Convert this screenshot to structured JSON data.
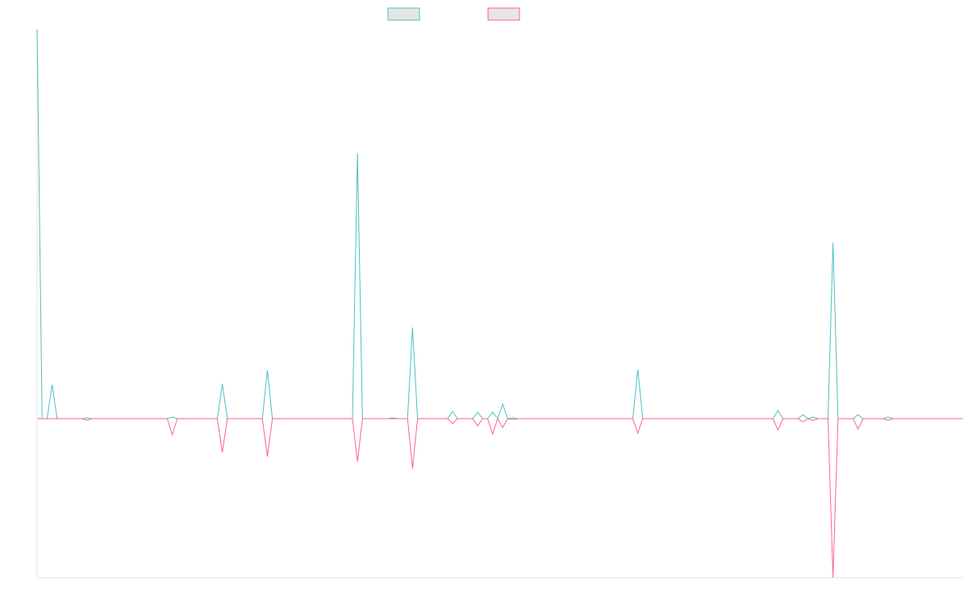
{
  "chart_data": {
    "type": "line",
    "ylim": [
      -197,
      483
    ],
    "series": [
      {
        "color": "#4bc0c0",
        "values": [
          483,
          0,
          0,
          42,
          0,
          0,
          0,
          0,
          0,
          0,
          1,
          0,
          0,
          0,
          0,
          0,
          0,
          0,
          0,
          0,
          0,
          0,
          0,
          0,
          0,
          0,
          0,
          2,
          0,
          0,
          0,
          0,
          0,
          0,
          0,
          0,
          0,
          43,
          0,
          0,
          0,
          0,
          0,
          0,
          0,
          0,
          60,
          0,
          0,
          0,
          0,
          0,
          0,
          0,
          0,
          0,
          0,
          0,
          0,
          0,
          0,
          0,
          0,
          0,
          329,
          0,
          0,
          0,
          0,
          0,
          0,
          1,
          0,
          0,
          0,
          113,
          0,
          0,
          0,
          0,
          0,
          0,
          0,
          9,
          0,
          0,
          0,
          0,
          8,
          0,
          0,
          8,
          0,
          18,
          0,
          1,
          0,
          0,
          0,
          0,
          0,
          0,
          0,
          0,
          0,
          0,
          0,
          0,
          0,
          0,
          0,
          0,
          0,
          0,
          0,
          0,
          0,
          0,
          0,
          0,
          61,
          0,
          0,
          0,
          0,
          0,
          0,
          0,
          0,
          0,
          0,
          0,
          0,
          0,
          0,
          0,
          0,
          0,
          0,
          0,
          0,
          0,
          0,
          0,
          0,
          0,
          0,
          0,
          10,
          0,
          0,
          0,
          0,
          5,
          0,
          2,
          0,
          0,
          0,
          218,
          0,
          0,
          0,
          0,
          5,
          0,
          0,
          0,
          0,
          0,
          2,
          0,
          0,
          0,
          0,
          0,
          0,
          0,
          0,
          0,
          0,
          0,
          0,
          0,
          0,
          0
        ]
      },
      {
        "color": "#ff6384",
        "values": [
          0,
          0,
          0,
          0,
          0,
          0,
          0,
          0,
          0,
          0,
          -2,
          0,
          0,
          0,
          0,
          0,
          0,
          0,
          0,
          0,
          0,
          0,
          0,
          0,
          0,
          0,
          0,
          -20,
          0,
          0,
          0,
          0,
          0,
          0,
          0,
          0,
          0,
          -42,
          0,
          0,
          0,
          0,
          0,
          0,
          0,
          0,
          -47,
          0,
          0,
          0,
          0,
          0,
          0,
          0,
          0,
          0,
          0,
          0,
          0,
          0,
          0,
          0,
          0,
          0,
          -53,
          0,
          0,
          0,
          0,
          0,
          0,
          0,
          0,
          0,
          0,
          -62,
          0,
          0,
          0,
          0,
          0,
          0,
          0,
          -6,
          0,
          0,
          0,
          0,
          -9,
          0,
          0,
          -19,
          0,
          -11,
          0,
          -1,
          0,
          0,
          0,
          0,
          0,
          0,
          0,
          0,
          0,
          0,
          0,
          0,
          0,
          0,
          0,
          0,
          0,
          0,
          0,
          0,
          0,
          0,
          0,
          0,
          -18,
          0,
          0,
          0,
          0,
          0,
          0,
          0,
          0,
          0,
          0,
          0,
          0,
          0,
          0,
          0,
          0,
          0,
          0,
          0,
          0,
          0,
          0,
          0,
          0,
          0,
          0,
          0,
          -14,
          0,
          0,
          0,
          0,
          -4,
          0,
          -2,
          0,
          0,
          0,
          -197,
          0,
          0,
          0,
          0,
          -13,
          0,
          0,
          0,
          0,
          0,
          -2,
          0,
          0,
          0,
          0,
          0,
          0,
          0,
          0,
          0,
          0,
          0,
          0,
          0,
          0,
          0
        ]
      }
    ]
  }
}
